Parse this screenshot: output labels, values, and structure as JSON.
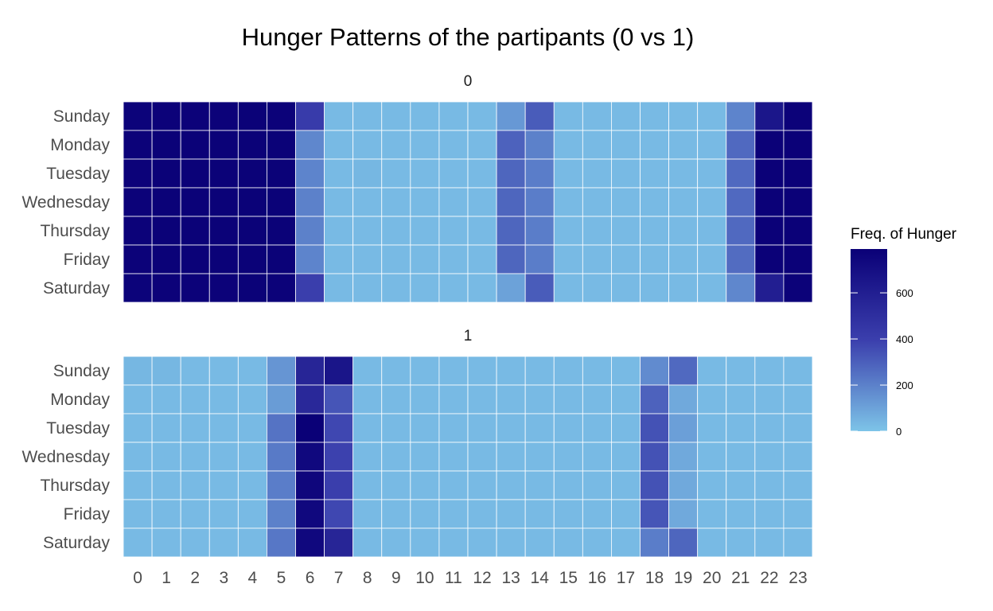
{
  "chart_data": {
    "type": "heatmap",
    "title": "Hunger Patterns of the partipants (0 vs 1)",
    "xlabel": "",
    "ylabel": "",
    "x_categories": [
      "0",
      "1",
      "2",
      "3",
      "4",
      "5",
      "6",
      "7",
      "8",
      "9",
      "10",
      "11",
      "12",
      "13",
      "14",
      "15",
      "16",
      "17",
      "18",
      "19",
      "20",
      "21",
      "22",
      "23"
    ],
    "y_categories": [
      "Sunday",
      "Monday",
      "Tuesday",
      "Wednesday",
      "Thursday",
      "Friday",
      "Saturday"
    ],
    "facets": [
      {
        "label": "0",
        "values": [
          [
            770,
            775,
            775,
            775,
            780,
            775,
            420,
            30,
            30,
            30,
            30,
            30,
            30,
            130,
            310,
            30,
            30,
            30,
            30,
            30,
            30,
            190,
            650,
            775
          ],
          [
            775,
            780,
            780,
            780,
            780,
            780,
            180,
            30,
            30,
            30,
            30,
            30,
            30,
            290,
            200,
            30,
            30,
            30,
            30,
            30,
            30,
            270,
            785,
            785
          ],
          [
            775,
            780,
            780,
            780,
            780,
            780,
            190,
            30,
            40,
            30,
            30,
            30,
            30,
            280,
            210,
            30,
            30,
            30,
            30,
            30,
            30,
            270,
            785,
            785
          ],
          [
            775,
            780,
            780,
            780,
            780,
            780,
            200,
            30,
            30,
            30,
            30,
            30,
            30,
            280,
            210,
            30,
            30,
            30,
            30,
            30,
            30,
            270,
            785,
            785
          ],
          [
            775,
            780,
            780,
            780,
            780,
            780,
            200,
            30,
            30,
            30,
            30,
            30,
            30,
            280,
            210,
            30,
            30,
            30,
            30,
            30,
            30,
            270,
            785,
            785
          ],
          [
            775,
            780,
            780,
            780,
            780,
            780,
            190,
            30,
            30,
            30,
            30,
            30,
            30,
            280,
            210,
            30,
            30,
            30,
            30,
            30,
            30,
            260,
            785,
            785
          ],
          [
            770,
            775,
            775,
            775,
            780,
            775,
            400,
            30,
            30,
            30,
            30,
            30,
            30,
            100,
            310,
            30,
            30,
            30,
            30,
            30,
            30,
            180,
            600,
            775
          ]
        ]
      },
      {
        "label": "1",
        "values": [
          [
            40,
            40,
            30,
            30,
            30,
            140,
            560,
            660,
            30,
            30,
            30,
            30,
            30,
            30,
            30,
            30,
            30,
            30,
            170,
            270,
            30,
            30,
            30,
            30
          ],
          [
            30,
            30,
            30,
            30,
            30,
            120,
            540,
            330,
            30,
            30,
            30,
            30,
            30,
            30,
            30,
            30,
            30,
            30,
            290,
            80,
            30,
            30,
            30,
            30
          ],
          [
            30,
            30,
            30,
            30,
            30,
            240,
            790,
            370,
            30,
            30,
            30,
            30,
            30,
            30,
            30,
            30,
            30,
            30,
            340,
            110,
            30,
            30,
            30,
            30
          ],
          [
            30,
            30,
            30,
            30,
            30,
            220,
            740,
            390,
            30,
            30,
            30,
            30,
            30,
            30,
            30,
            30,
            30,
            30,
            340,
            80,
            30,
            30,
            30,
            30
          ],
          [
            30,
            30,
            30,
            30,
            30,
            210,
            750,
            400,
            30,
            30,
            30,
            30,
            30,
            30,
            30,
            30,
            30,
            30,
            340,
            80,
            30,
            30,
            30,
            30
          ],
          [
            30,
            30,
            30,
            30,
            30,
            200,
            740,
            370,
            30,
            30,
            30,
            30,
            30,
            30,
            30,
            30,
            30,
            30,
            330,
            80,
            30,
            30,
            30,
            30
          ],
          [
            30,
            30,
            30,
            30,
            30,
            230,
            740,
            560,
            30,
            30,
            30,
            30,
            30,
            30,
            30,
            30,
            30,
            30,
            210,
            280,
            30,
            30,
            30,
            30
          ]
        ]
      }
    ],
    "legend": {
      "title": "Freq. of Hunger",
      "ticks": [
        0,
        200,
        400,
        600
      ],
      "range": [
        0,
        790
      ],
      "placement": "right"
    },
    "colors": {
      "low": "#7dc4e8",
      "mid": "#3b3fad",
      "high": "#0a0077",
      "grid": "#ffffff"
    },
    "grid": true
  }
}
